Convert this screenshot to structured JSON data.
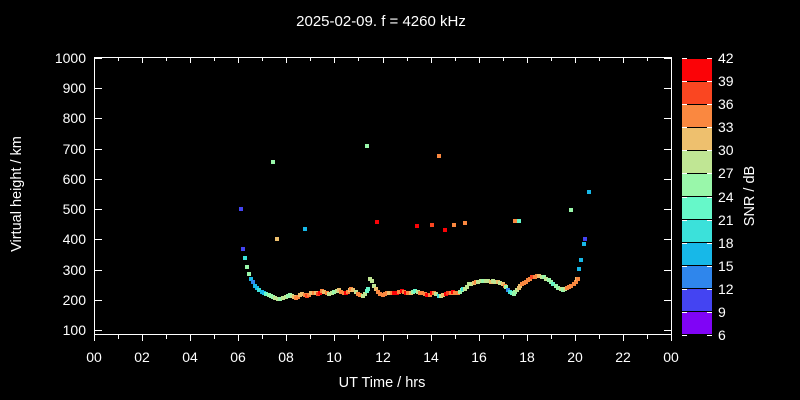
{
  "title": "2025-02-09. f = 4260 kHz",
  "colors": {
    "background": "#000000",
    "text": "#ffffff",
    "axis": "#ffffff"
  },
  "y_axis": {
    "label": "Virtual height / km",
    "tick_values": [
      100,
      200,
      300,
      400,
      500,
      600,
      700,
      800,
      900,
      1000
    ],
    "tick_labels": [
      "100",
      "200",
      "300",
      "400",
      "500",
      "600",
      "700",
      "800",
      "900",
      "1000"
    ]
  },
  "x_axis": {
    "label": "UT Time / hrs",
    "tick_values_hours": [
      0,
      2,
      4,
      6,
      8,
      10,
      12,
      14,
      16,
      18,
      20,
      22,
      24
    ],
    "tick_labels": [
      "00",
      "02",
      "04",
      "06",
      "08",
      "10",
      "12",
      "14",
      "16",
      "18",
      "20",
      "22",
      "00"
    ],
    "minor_tick_step_hours": 1
  },
  "colorbar": {
    "label": "SNR / dB",
    "tick_values_db": [
      42,
      39,
      36,
      33,
      30,
      27,
      24,
      21,
      18,
      15,
      12,
      9,
      6
    ],
    "tick_labels": [
      "42",
      "39",
      "36",
      "33",
      "30",
      "27",
      "24",
      "21",
      "18",
      "15",
      "12",
      "9",
      "6"
    ],
    "segment_colors_low_to_high": [
      "#8004f6",
      "#4444f2",
      "#2f86ec",
      "#17b8e8",
      "#3be1da",
      "#66f8c9",
      "#99f7aa",
      "#c0e694",
      "#eec06e",
      "#fa8840",
      "#fa4621",
      "#fb0307"
    ]
  },
  "chart_data": {
    "type": "scatter",
    "title": "2025-02-09. f = 4260 kHz",
    "xlabel": "UT Time / hrs",
    "ylabel": "Virtual height / km",
    "x_range_hours": [
      0,
      24
    ],
    "y_tick_range_km": [
      100,
      1000
    ],
    "frame_value_range_km": [
      88,
      1002
    ],
    "grid": false,
    "legend_position": "colorbar-right",
    "color_scale": {
      "label": "SNR / dB",
      "min_db": 6,
      "max_db": 42,
      "step_db": 3
    },
    "marker": "square",
    "marker_size_px": 4,
    "points_t_hr_height_km_snr_db": [
      [
        6.11,
        500,
        10
      ],
      [
        6.2,
        367,
        10
      ],
      [
        7.46,
        656,
        25
      ],
      [
        7.61,
        400,
        31
      ],
      [
        8.79,
        436,
        16
      ],
      [
        11.36,
        707,
        25
      ],
      [
        11.77,
        456,
        40
      ],
      [
        13.42,
        445,
        40
      ],
      [
        14.05,
        447,
        37
      ],
      [
        14.35,
        675,
        34
      ],
      [
        14.6,
        430,
        40
      ],
      [
        14.99,
        447,
        34
      ],
      [
        15.42,
        454,
        34
      ],
      [
        17.5,
        461,
        34
      ],
      [
        17.69,
        460,
        22
      ],
      [
        19.85,
        496,
        25
      ],
      [
        20.6,
        558,
        16
      ],
      [
        6.29,
        339,
        19
      ],
      [
        6.37,
        308,
        25
      ],
      [
        6.46,
        287,
        25
      ],
      [
        6.53,
        270,
        16
      ],
      [
        6.6,
        258,
        13
      ],
      [
        6.68,
        247,
        16
      ],
      [
        6.77,
        240,
        16
      ],
      [
        6.87,
        233,
        19
      ],
      [
        6.97,
        228,
        16
      ],
      [
        7.07,
        224,
        16
      ],
      [
        7.17,
        220,
        22
      ],
      [
        7.27,
        217,
        25
      ],
      [
        7.35,
        213,
        25
      ],
      [
        7.43,
        210,
        25
      ],
      [
        7.53,
        206,
        28
      ],
      [
        7.64,
        204,
        28
      ],
      [
        7.75,
        204,
        25
      ],
      [
        7.86,
        206,
        28
      ],
      [
        7.97,
        210,
        28
      ],
      [
        8.06,
        213,
        25
      ],
      [
        8.14,
        216,
        25
      ],
      [
        8.22,
        213,
        28
      ],
      [
        8.31,
        210,
        31
      ],
      [
        8.4,
        206,
        34
      ],
      [
        8.5,
        210,
        34
      ],
      [
        8.58,
        216,
        31
      ],
      [
        8.67,
        220,
        31
      ],
      [
        8.76,
        216,
        34
      ],
      [
        8.86,
        213,
        37
      ],
      [
        8.94,
        216,
        34
      ],
      [
        9.04,
        222,
        31
      ],
      [
        9.14,
        224,
        34
      ],
      [
        9.23,
        222,
        31
      ],
      [
        9.33,
        220,
        37
      ],
      [
        9.41,
        224,
        40
      ],
      [
        9.5,
        230,
        34
      ],
      [
        9.58,
        226,
        31
      ],
      [
        9.68,
        222,
        34
      ],
      [
        9.79,
        220,
        28
      ],
      [
        9.89,
        222,
        28
      ],
      [
        9.98,
        226,
        25
      ],
      [
        10.09,
        230,
        28
      ],
      [
        10.19,
        232,
        31
      ],
      [
        10.29,
        226,
        34
      ],
      [
        10.38,
        222,
        34
      ],
      [
        10.47,
        224,
        40
      ],
      [
        10.55,
        228,
        34
      ],
      [
        10.63,
        232,
        31
      ],
      [
        10.71,
        236,
        34
      ],
      [
        10.79,
        232,
        31
      ],
      [
        10.88,
        226,
        28
      ],
      [
        10.98,
        220,
        34
      ],
      [
        11.08,
        216,
        34
      ],
      [
        11.18,
        212,
        28
      ],
      [
        11.27,
        219,
        28
      ],
      [
        11.34,
        231,
        22
      ],
      [
        11.4,
        238,
        22
      ],
      [
        11.47,
        269,
        28
      ],
      [
        11.58,
        263,
        28
      ],
      [
        11.65,
        248,
        28
      ],
      [
        11.72,
        238,
        31
      ],
      [
        11.8,
        226,
        34
      ],
      [
        11.9,
        220,
        34
      ],
      [
        12.0,
        216,
        34
      ],
      [
        12.1,
        220,
        34
      ],
      [
        12.19,
        222,
        34
      ],
      [
        12.29,
        224,
        31
      ],
      [
        12.39,
        222,
        34
      ],
      [
        12.49,
        222,
        40
      ],
      [
        12.6,
        224,
        40
      ],
      [
        12.7,
        226,
        34
      ],
      [
        12.8,
        230,
        40
      ],
      [
        12.88,
        226,
        34
      ],
      [
        12.98,
        224,
        40
      ],
      [
        13.08,
        222,
        34
      ],
      [
        13.18,
        224,
        31
      ],
      [
        13.27,
        226,
        25
      ],
      [
        13.37,
        230,
        22
      ],
      [
        13.47,
        226,
        28
      ],
      [
        13.57,
        224,
        34
      ],
      [
        13.66,
        222,
        34
      ],
      [
        13.76,
        220,
        34
      ],
      [
        13.86,
        216,
        40
      ],
      [
        13.96,
        216,
        34
      ],
      [
        14.05,
        222,
        40
      ],
      [
        14.14,
        224,
        34
      ],
      [
        14.24,
        220,
        28
      ],
      [
        14.34,
        214,
        19
      ],
      [
        14.43,
        212,
        28
      ],
      [
        14.53,
        216,
        31
      ],
      [
        14.64,
        220,
        40
      ],
      [
        14.74,
        222,
        37
      ],
      [
        14.84,
        224,
        34
      ],
      [
        14.93,
        226,
        40
      ],
      [
        15.03,
        224,
        34
      ],
      [
        15.13,
        222,
        34
      ],
      [
        15.22,
        226,
        25
      ],
      [
        15.29,
        234,
        25
      ],
      [
        15.35,
        238,
        19
      ],
      [
        15.42,
        236,
        28
      ],
      [
        15.5,
        244,
        28
      ],
      [
        15.6,
        252,
        28
      ],
      [
        15.7,
        254,
        28
      ],
      [
        15.79,
        256,
        31
      ],
      [
        15.89,
        258,
        34
      ],
      [
        15.99,
        261,
        28
      ],
      [
        16.09,
        263,
        28
      ],
      [
        16.19,
        262,
        25
      ],
      [
        16.29,
        263,
        28
      ],
      [
        16.4,
        262,
        28
      ],
      [
        16.5,
        261,
        31
      ],
      [
        16.6,
        262,
        28
      ],
      [
        16.7,
        261,
        28
      ],
      [
        16.8,
        258,
        31
      ],
      [
        16.9,
        256,
        28
      ],
      [
        17.0,
        254,
        31
      ],
      [
        17.08,
        248,
        34
      ],
      [
        17.15,
        242,
        25
      ],
      [
        17.22,
        234,
        13
      ],
      [
        17.3,
        226,
        19
      ],
      [
        17.38,
        222,
        22
      ],
      [
        17.45,
        219,
        25
      ],
      [
        17.52,
        226,
        25
      ],
      [
        17.6,
        234,
        28
      ],
      [
        17.67,
        241,
        31
      ],
      [
        17.73,
        248,
        31
      ],
      [
        17.8,
        254,
        34
      ],
      [
        17.88,
        257,
        34
      ],
      [
        17.96,
        259,
        34
      ],
      [
        18.05,
        265,
        34
      ],
      [
        18.14,
        270,
        34
      ],
      [
        18.23,
        275,
        37
      ],
      [
        18.33,
        277,
        34
      ],
      [
        18.43,
        279,
        34
      ],
      [
        18.53,
        279,
        31
      ],
      [
        18.63,
        277,
        28
      ],
      [
        18.72,
        275,
        25
      ],
      [
        18.82,
        270,
        28
      ],
      [
        18.92,
        265,
        25
      ],
      [
        19.01,
        258,
        25
      ],
      [
        19.11,
        252,
        22
      ],
      [
        19.21,
        246,
        25
      ],
      [
        19.31,
        240,
        25
      ],
      [
        19.41,
        236,
        28
      ],
      [
        19.49,
        234,
        25
      ],
      [
        19.59,
        236,
        28
      ],
      [
        19.67,
        240,
        34
      ],
      [
        19.77,
        242,
        34
      ],
      [
        19.86,
        248,
        34
      ],
      [
        19.95,
        252,
        34
      ],
      [
        20.03,
        261,
        34
      ],
      [
        20.08,
        268,
        31
      ],
      [
        20.13,
        269,
        34
      ],
      [
        20.18,
        301,
        16
      ],
      [
        20.26,
        333,
        16
      ],
      [
        20.38,
        384,
        16
      ],
      [
        20.43,
        403,
        10
      ]
    ]
  }
}
